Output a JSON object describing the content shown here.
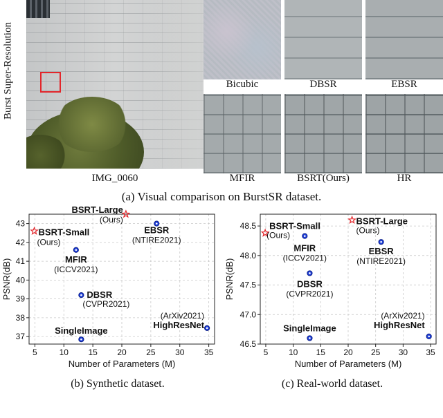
{
  "row_label": "Burst Super-Resolution",
  "images": {
    "main_caption": "IMG_0060",
    "crops": [
      {
        "id": "bicubic",
        "label": "Bicubic"
      },
      {
        "id": "dbsr",
        "label": "DBSR"
      },
      {
        "id": "ebsr",
        "label": "EBSR"
      },
      {
        "id": "mfir",
        "label": "MFIR"
      },
      {
        "id": "bsrt",
        "label": "BSRT(Ours)"
      },
      {
        "id": "hr",
        "label": "HR"
      }
    ]
  },
  "captions": {
    "a": "(a) Visual comparison on BurstSR dataset.",
    "b": "(b) Synthetic dataset.",
    "c": "(c) Real-world dataset."
  },
  "colors": {
    "ours": "#e3262b",
    "others": "#1f3fd8"
  },
  "chart_data": [
    {
      "type": "scatter",
      "xlabel": "Number of Parameters (M)",
      "ylabel": "PSNR(dB)",
      "xlim": [
        4,
        36
      ],
      "ylim": [
        36.6,
        43.5
      ],
      "xticks": [
        5,
        10,
        15,
        20,
        25,
        30,
        35
      ],
      "yticks": [
        37,
        38,
        39,
        40,
        41,
        42,
        43
      ],
      "grid": true,
      "points": [
        {
          "name": "BSRT-Large",
          "sub": "(Ours)",
          "x": 20.7,
          "y": 43.6,
          "ours": true
        },
        {
          "name": "BSRT-Small",
          "sub": "(Ours)",
          "x": 4.9,
          "y": 42.6,
          "ours": true
        },
        {
          "name": "EBSR",
          "sub": "(NTIRE2021)",
          "x": 26.0,
          "y": 43.0,
          "ours": false
        },
        {
          "name": "MFIR",
          "sub": "(ICCV2021)",
          "x": 12.1,
          "y": 41.6,
          "ours": false
        },
        {
          "name": "DBSR",
          "sub": "(CVPR2021)",
          "x": 13.0,
          "y": 39.2,
          "ours": false
        },
        {
          "name": "HighResNet",
          "sub": "(ArXiv2021)",
          "x": 34.7,
          "y": 37.45,
          "ours": false
        },
        {
          "name": "SingleImage",
          "sub": "",
          "x": 13.0,
          "y": 36.85,
          "ours": false
        }
      ]
    },
    {
      "type": "scatter",
      "xlabel": "Number of Parameters (M)",
      "ylabel": "PSNR(dB)",
      "xlim": [
        4,
        36
      ],
      "ylim": [
        46.5,
        48.7
      ],
      "xticks": [
        5,
        10,
        15,
        20,
        25,
        30,
        35
      ],
      "yticks": [
        46.5,
        47.0,
        47.5,
        48.0,
        48.5
      ],
      "grid": true,
      "points": [
        {
          "name": "BSRT-Large",
          "sub": "(Ours)",
          "x": 20.7,
          "y": 48.6,
          "ours": true
        },
        {
          "name": "BSRT-Small",
          "sub": "(Ours)",
          "x": 4.9,
          "y": 48.38,
          "ours": true
        },
        {
          "name": "MFIR",
          "sub": "(ICCV2021)",
          "x": 12.1,
          "y": 48.33,
          "ours": false
        },
        {
          "name": "EBSR",
          "sub": "(NTIRE2021)",
          "x": 26.0,
          "y": 48.23,
          "ours": false
        },
        {
          "name": "DBSR",
          "sub": "(CVPR2021)",
          "x": 13.0,
          "y": 47.7,
          "ours": false
        },
        {
          "name": "HighResNet",
          "sub": "(ArXiv2021)",
          "x": 34.7,
          "y": 46.63,
          "ours": false
        },
        {
          "name": "SingleImage",
          "sub": "",
          "x": 13.0,
          "y": 46.6,
          "ours": false
        }
      ]
    }
  ]
}
